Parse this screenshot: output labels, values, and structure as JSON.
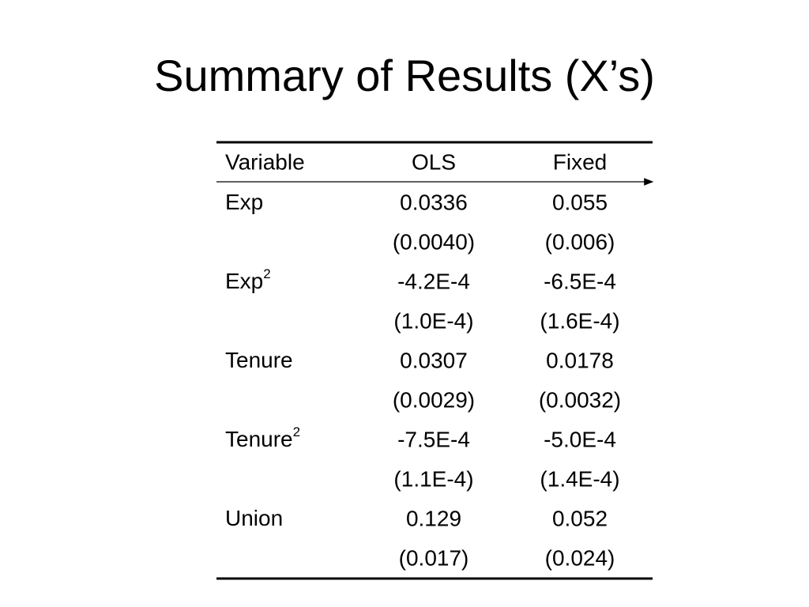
{
  "title": "Summary of Results (X’s)",
  "table": {
    "header": [
      "Variable",
      "OLS",
      "Fixed"
    ],
    "rows": [
      {
        "variable": "Exp",
        "ols": "0.0336",
        "ols_se": "(0.0040)",
        "fixed": "0.055",
        "fixed_se": "(0.006)"
      },
      {
        "variable": "Exp",
        "superscript": "2",
        "ols": "-4.2E-4",
        "ols_se": "(1.0E-4)",
        "fixed": "-6.5E-4",
        "fixed_se": "(1.6E-4)"
      },
      {
        "variable": "Tenure",
        "ols": "0.0307",
        "ols_se": "(0.0029)",
        "fixed": "0.0178",
        "fixed_se": "(0.0032)"
      },
      {
        "variable": "Tenure",
        "superscript": "2",
        "ols": "-7.5E-4",
        "ols_se": "(1.1E-4)",
        "fixed": "-5.0E-4",
        "fixed_se": "(1.4E-4)"
      },
      {
        "variable": "Union",
        "ols": "0.129",
        "ols_se": "(0.017)",
        "fixed": "0.052",
        "fixed_se": "(0.024)"
      }
    ]
  }
}
